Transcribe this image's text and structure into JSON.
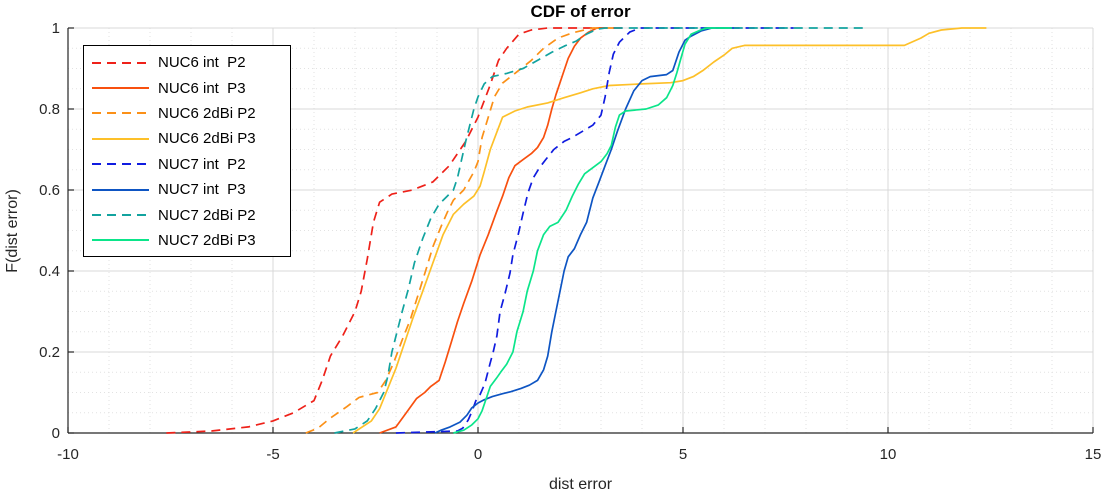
{
  "chart_data": {
    "type": "line",
    "title": "CDF of error",
    "xlabel": "dist error",
    "ylabel": "F(dist error)",
    "xlim": [
      -10,
      15
    ],
    "ylim": [
      0,
      1
    ],
    "grid": "major solid gray, minor dotted; minor x step 1, minor y step 0.05",
    "legend_position": "upper-left",
    "x_ticks": [
      {
        "v": -10,
        "label": "-10"
      },
      {
        "v": -5,
        "label": "-5"
      },
      {
        "v": 0,
        "label": "0"
      },
      {
        "v": 5,
        "label": "5"
      },
      {
        "v": 10,
        "label": "10"
      },
      {
        "v": 15,
        "label": "15"
      }
    ],
    "y_ticks": [
      {
        "v": 0,
        "label": "0"
      },
      {
        "v": 0.2,
        "label": "0.2"
      },
      {
        "v": 0.4,
        "label": "0.4"
      },
      {
        "v": 0.6,
        "label": "0.6"
      },
      {
        "v": 0.8,
        "label": "0.8"
      },
      {
        "v": 1,
        "label": "1"
      }
    ],
    "series": [
      {
        "name": "NUC6 int  P2",
        "color": "#ee2119",
        "style": "dashed",
        "points": [
          [
            -7.6,
            0
          ],
          [
            -6.5,
            0.005
          ],
          [
            -5.6,
            0.015
          ],
          [
            -5,
            0.03
          ],
          [
            -4.5,
            0.05
          ],
          [
            -4,
            0.08
          ],
          [
            -3.8,
            0.13
          ],
          [
            -3.6,
            0.19
          ],
          [
            -3.3,
            0.24
          ],
          [
            -3,
            0.3
          ],
          [
            -2.85,
            0.35
          ],
          [
            -2.7,
            0.43
          ],
          [
            -2.55,
            0.52
          ],
          [
            -2.4,
            0.57
          ],
          [
            -2.1,
            0.59
          ],
          [
            -1.6,
            0.6
          ],
          [
            -1.1,
            0.62
          ],
          [
            -0.7,
            0.66
          ],
          [
            -0.3,
            0.72
          ],
          [
            0,
            0.78
          ],
          [
            0.3,
            0.86
          ],
          [
            0.5,
            0.92
          ],
          [
            0.7,
            0.95
          ],
          [
            1,
            0.985
          ],
          [
            1.3,
            0.995
          ],
          [
            1.7,
            1
          ],
          [
            3.6,
            1
          ]
        ]
      },
      {
        "name": "NUC6 int  P3",
        "color": "#f8500f",
        "style": "solid",
        "points": [
          [
            -2.4,
            0
          ],
          [
            -2,
            0.015
          ],
          [
            -1.75,
            0.05
          ],
          [
            -1.5,
            0.085
          ],
          [
            -1.3,
            0.1
          ],
          [
            -1.15,
            0.115
          ],
          [
            -0.95,
            0.13
          ],
          [
            -0.8,
            0.175
          ],
          [
            -0.65,
            0.225
          ],
          [
            -0.5,
            0.275
          ],
          [
            -0.35,
            0.32
          ],
          [
            -0.15,
            0.375
          ],
          [
            0.05,
            0.44
          ],
          [
            0.25,
            0.49
          ],
          [
            0.45,
            0.545
          ],
          [
            0.6,
            0.585
          ],
          [
            0.75,
            0.63
          ],
          [
            0.9,
            0.66
          ],
          [
            1.1,
            0.675
          ],
          [
            1.3,
            0.69
          ],
          [
            1.45,
            0.705
          ],
          [
            1.6,
            0.73
          ],
          [
            1.7,
            0.76
          ],
          [
            1.8,
            0.8
          ],
          [
            1.9,
            0.835
          ],
          [
            2,
            0.865
          ],
          [
            2.1,
            0.895
          ],
          [
            2.2,
            0.925
          ],
          [
            2.35,
            0.955
          ],
          [
            2.5,
            0.975
          ],
          [
            2.7,
            0.99
          ],
          [
            2.9,
            1
          ],
          [
            3.1,
            1
          ]
        ]
      },
      {
        "name": "NUC6 2dBi P2",
        "color": "#fb9017",
        "style": "dashed",
        "points": [
          [
            -4.2,
            0
          ],
          [
            -3.9,
            0.012
          ],
          [
            -3.6,
            0.037
          ],
          [
            -3.2,
            0.065
          ],
          [
            -2.9,
            0.088
          ],
          [
            -2.45,
            0.1
          ],
          [
            -2.25,
            0.13
          ],
          [
            -2.05,
            0.175
          ],
          [
            -1.85,
            0.23
          ],
          [
            -1.65,
            0.28
          ],
          [
            -1.45,
            0.345
          ],
          [
            -1.25,
            0.41
          ],
          [
            -1.1,
            0.46
          ],
          [
            -0.9,
            0.51
          ],
          [
            -0.75,
            0.545
          ],
          [
            -0.6,
            0.575
          ],
          [
            -0.35,
            0.6
          ],
          [
            -0.1,
            0.645
          ],
          [
            0,
            0.67
          ],
          [
            0.1,
            0.73
          ],
          [
            0.25,
            0.78
          ],
          [
            0.4,
            0.83
          ],
          [
            0.6,
            0.864
          ],
          [
            0.9,
            0.888
          ],
          [
            1.3,
            0.92
          ],
          [
            1.6,
            0.95
          ],
          [
            1.95,
            0.975
          ],
          [
            2.3,
            0.988
          ],
          [
            2.8,
            1
          ],
          [
            3.3,
            1
          ]
        ]
      },
      {
        "name": "NUC6 2dBi P3",
        "color": "#fdc029",
        "style": "solid",
        "points": [
          [
            -3.05,
            0
          ],
          [
            -2.6,
            0.03
          ],
          [
            -2.4,
            0.06
          ],
          [
            -2.2,
            0.11
          ],
          [
            -2,
            0.16
          ],
          [
            -1.8,
            0.22
          ],
          [
            -1.6,
            0.28
          ],
          [
            -1.35,
            0.35
          ],
          [
            -1.1,
            0.42
          ],
          [
            -0.85,
            0.49
          ],
          [
            -0.6,
            0.54
          ],
          [
            -0.35,
            0.565
          ],
          [
            -0.1,
            0.585
          ],
          [
            0.05,
            0.61
          ],
          [
            0.15,
            0.645
          ],
          [
            0.3,
            0.7
          ],
          [
            0.45,
            0.74
          ],
          [
            0.6,
            0.78
          ],
          [
            0.9,
            0.795
          ],
          [
            1.2,
            0.805
          ],
          [
            1.7,
            0.815
          ],
          [
            2.1,
            0.828
          ],
          [
            2.5,
            0.84
          ],
          [
            2.8,
            0.85
          ],
          [
            3.2,
            0.858
          ],
          [
            4,
            0.862
          ],
          [
            4.7,
            0.865
          ],
          [
            5,
            0.87
          ],
          [
            5.25,
            0.88
          ],
          [
            5.5,
            0.896
          ],
          [
            5.75,
            0.916
          ],
          [
            6,
            0.933
          ],
          [
            6.2,
            0.95
          ],
          [
            6.5,
            0.957
          ],
          [
            10.4,
            0.957
          ],
          [
            10.8,
            0.975
          ],
          [
            11,
            0.987
          ],
          [
            11.3,
            0.995
          ],
          [
            11.8,
            1
          ],
          [
            12.4,
            1
          ]
        ]
      },
      {
        "name": "NUC7 int  P2",
        "color": "#101ce0",
        "style": "dashed",
        "points": [
          [
            -2,
            0
          ],
          [
            -0.5,
            0.005
          ],
          [
            -0.37,
            0.012
          ],
          [
            -0.24,
            0.032
          ],
          [
            -0.15,
            0.052
          ],
          [
            -0.05,
            0.08
          ],
          [
            0.05,
            0.095
          ],
          [
            0.17,
            0.123
          ],
          [
            0.29,
            0.17
          ],
          [
            0.37,
            0.2
          ],
          [
            0.46,
            0.24
          ],
          [
            0.54,
            0.3
          ],
          [
            0.66,
            0.345
          ],
          [
            0.78,
            0.395
          ],
          [
            0.85,
            0.44
          ],
          [
            0.98,
            0.49
          ],
          [
            1.1,
            0.543
          ],
          [
            1.22,
            0.593
          ],
          [
            1.35,
            0.63
          ],
          [
            1.5,
            0.655
          ],
          [
            1.65,
            0.675
          ],
          [
            1.85,
            0.7
          ],
          [
            2.1,
            0.72
          ],
          [
            2.3,
            0.73
          ],
          [
            2.55,
            0.745
          ],
          [
            2.8,
            0.76
          ],
          [
            3,
            0.785
          ],
          [
            3.1,
            0.83
          ],
          [
            3.2,
            0.89
          ],
          [
            3.3,
            0.935
          ],
          [
            3.45,
            0.965
          ],
          [
            3.7,
            0.99
          ],
          [
            3.95,
            1
          ],
          [
            7.7,
            1
          ]
        ]
      },
      {
        "name": "NUC7 int  P3",
        "color": "#0e55c3",
        "style": "solid",
        "points": [
          [
            -1.05,
            0
          ],
          [
            -0.9,
            0.007
          ],
          [
            -0.68,
            0.015
          ],
          [
            -0.44,
            0.027
          ],
          [
            -0.27,
            0.044
          ],
          [
            -0.15,
            0.062
          ],
          [
            0,
            0.074
          ],
          [
            0.15,
            0.082
          ],
          [
            0.35,
            0.09
          ],
          [
            0.6,
            0.097
          ],
          [
            0.8,
            0.102
          ],
          [
            1.05,
            0.11
          ],
          [
            1.25,
            0.118
          ],
          [
            1.45,
            0.13
          ],
          [
            1.6,
            0.156
          ],
          [
            1.7,
            0.19
          ],
          [
            1.8,
            0.25
          ],
          [
            1.9,
            0.3
          ],
          [
            2,
            0.35
          ],
          [
            2.1,
            0.4
          ],
          [
            2.2,
            0.435
          ],
          [
            2.35,
            0.455
          ],
          [
            2.5,
            0.49
          ],
          [
            2.65,
            0.52
          ],
          [
            2.8,
            0.58
          ],
          [
            2.95,
            0.62
          ],
          [
            3.1,
            0.66
          ],
          [
            3.25,
            0.7
          ],
          [
            3.4,
            0.745
          ],
          [
            3.6,
            0.8
          ],
          [
            3.8,
            0.845
          ],
          [
            4,
            0.87
          ],
          [
            4.2,
            0.88
          ],
          [
            4.6,
            0.885
          ],
          [
            4.75,
            0.895
          ],
          [
            4.9,
            0.94
          ],
          [
            5.05,
            0.97
          ],
          [
            5.2,
            0.98
          ],
          [
            5.45,
            0.993
          ],
          [
            5.7,
            1
          ],
          [
            6.2,
            1
          ]
        ]
      },
      {
        "name": "NUC7 2dBi P2",
        "color": "#12a39f",
        "style": "dashed",
        "points": [
          [
            -3.5,
            0
          ],
          [
            -3,
            0.01
          ],
          [
            -2.7,
            0.03
          ],
          [
            -2.5,
            0.06
          ],
          [
            -2.3,
            0.1
          ],
          [
            -2.2,
            0.14
          ],
          [
            -2.1,
            0.2
          ],
          [
            -1.95,
            0.26
          ],
          [
            -1.85,
            0.3
          ],
          [
            -1.7,
            0.355
          ],
          [
            -1.55,
            0.42
          ],
          [
            -1.35,
            0.48
          ],
          [
            -1.15,
            0.53
          ],
          [
            -0.95,
            0.565
          ],
          [
            -0.75,
            0.585
          ],
          [
            -0.6,
            0.6
          ],
          [
            -0.5,
            0.63
          ],
          [
            -0.4,
            0.675
          ],
          [
            -0.3,
            0.72
          ],
          [
            -0.2,
            0.76
          ],
          [
            -0.1,
            0.8
          ],
          [
            0,
            0.83
          ],
          [
            0.15,
            0.862
          ],
          [
            0.35,
            0.88
          ],
          [
            0.7,
            0.888
          ],
          [
            1.1,
            0.9
          ],
          [
            1.5,
            0.923
          ],
          [
            1.8,
            0.94
          ],
          [
            2.1,
            0.955
          ],
          [
            2.4,
            0.968
          ],
          [
            2.65,
            0.985
          ],
          [
            2.9,
            0.997
          ],
          [
            3.1,
            1
          ],
          [
            9.5,
            1
          ]
        ]
      },
      {
        "name": "NUC7 2dBi P3",
        "color": "#0be58a",
        "style": "solid",
        "points": [
          [
            -0.6,
            0
          ],
          [
            -0.35,
            0.007
          ],
          [
            -0.15,
            0.02
          ],
          [
            0,
            0.035
          ],
          [
            0.1,
            0.055
          ],
          [
            0.2,
            0.085
          ],
          [
            0.3,
            0.115
          ],
          [
            0.45,
            0.135
          ],
          [
            0.55,
            0.15
          ],
          [
            0.7,
            0.17
          ],
          [
            0.85,
            0.2
          ],
          [
            0.95,
            0.25
          ],
          [
            1.1,
            0.3
          ],
          [
            1.2,
            0.35
          ],
          [
            1.35,
            0.4
          ],
          [
            1.45,
            0.45
          ],
          [
            1.6,
            0.49
          ],
          [
            1.75,
            0.51
          ],
          [
            1.95,
            0.52
          ],
          [
            2.15,
            0.55
          ],
          [
            2.3,
            0.585
          ],
          [
            2.45,
            0.615
          ],
          [
            2.6,
            0.64
          ],
          [
            2.8,
            0.655
          ],
          [
            3,
            0.67
          ],
          [
            3.15,
            0.69
          ],
          [
            3.25,
            0.71
          ],
          [
            3.35,
            0.755
          ],
          [
            3.45,
            0.785
          ],
          [
            3.6,
            0.795
          ],
          [
            4.1,
            0.8
          ],
          [
            4.4,
            0.81
          ],
          [
            4.6,
            0.828
          ],
          [
            4.75,
            0.858
          ],
          [
            4.85,
            0.89
          ],
          [
            4.95,
            0.925
          ],
          [
            5.05,
            0.96
          ],
          [
            5.2,
            0.985
          ],
          [
            5.45,
            0.996
          ],
          [
            5.6,
            1
          ],
          [
            6.2,
            1
          ]
        ]
      }
    ],
    "style_hints": {
      "major_grid_color": "#d9d9d9",
      "minor_grid_color": "#e2e2e2",
      "axis_color": "#262626",
      "line_width": 1.7,
      "dash_pattern": "9 6"
    }
  }
}
